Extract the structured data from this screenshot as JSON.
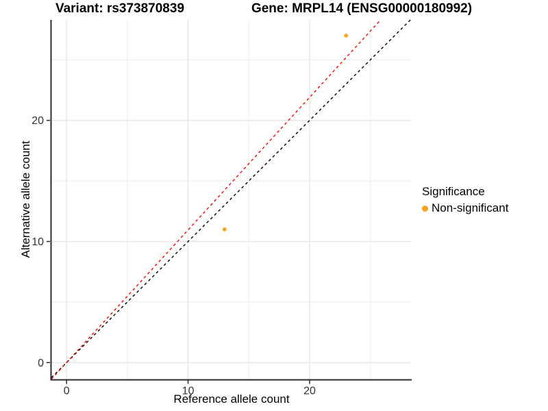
{
  "titles": {
    "variant": "Variant: rs373870839",
    "gene": "Gene: MRPL14 (ENSG00000180992)"
  },
  "chart_data": {
    "type": "scatter",
    "xlabel": "Reference allele count",
    "ylabel": "Alternative allele count",
    "xlim": [
      -1.25,
      28.4
    ],
    "ylim": [
      -1.37,
      28.3
    ],
    "x_ticks": [
      0,
      10,
      20
    ],
    "y_ticks": [
      0,
      10,
      20
    ],
    "major_grid": [
      0,
      10,
      20
    ],
    "minor_grid": [
      5,
      15,
      25
    ],
    "points": [
      {
        "x": 13,
        "y": 11,
        "series": "Non-significant"
      },
      {
        "x": 23,
        "y": 27,
        "series": "Non-significant"
      }
    ],
    "lines": [
      {
        "name": "identity-line",
        "slope": 1.0,
        "intercept": 0,
        "color": "#000000",
        "dash": "4 4"
      },
      {
        "name": "fitted-ratio-line",
        "slope": 1.095,
        "intercept": 0,
        "color": "#FF0000",
        "dash": "4 4"
      }
    ],
    "colors": {
      "point": "#FFA41E",
      "major_grid": "#E8E8E8",
      "minor_grid": "#EDEDED",
      "axis": "#2b2b2b",
      "tick_label": "#333333"
    },
    "legend": {
      "title": "Significance",
      "items": [
        {
          "label": "Non-significant",
          "color": "#FFA41E"
        }
      ],
      "position": "right"
    }
  }
}
